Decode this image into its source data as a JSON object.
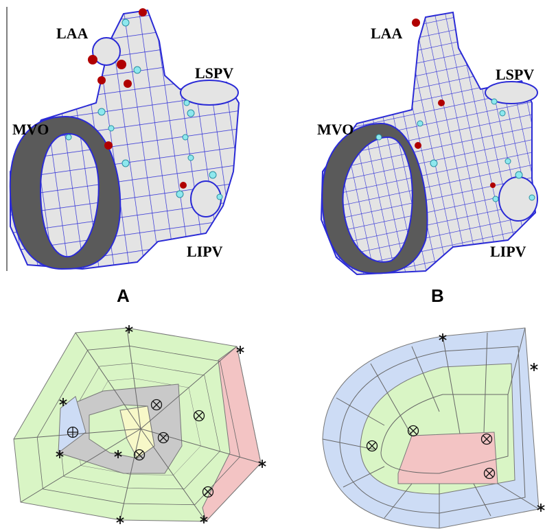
{
  "panels": [
    {
      "label": "A",
      "structures": [
        "LAA",
        "LSPV",
        "MVO",
        "LIPV"
      ]
    },
    {
      "label": "B",
      "structures": [
        "LAA",
        "LSPV",
        "MVO",
        "LIPV"
      ]
    }
  ]
}
